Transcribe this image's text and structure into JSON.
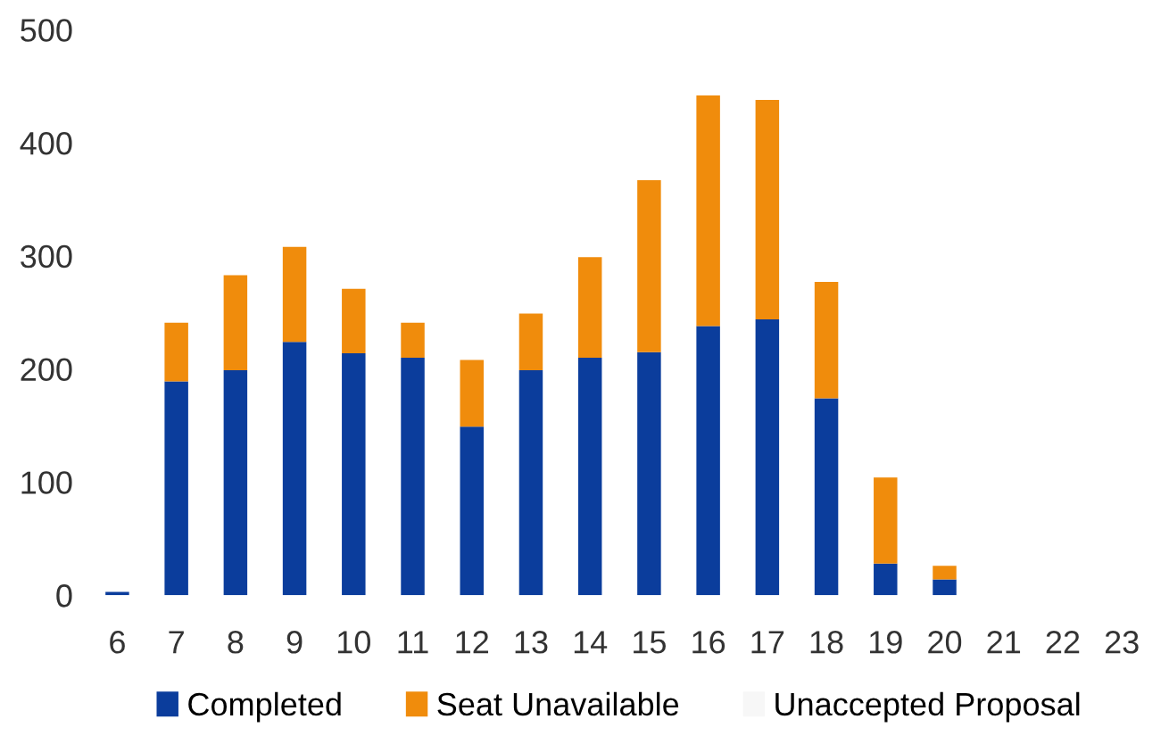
{
  "chart_data": {
    "type": "bar",
    "stacked": true,
    "categories": [
      "6",
      "7",
      "8",
      "9",
      "10",
      "11",
      "12",
      "13",
      "14",
      "15",
      "16",
      "17",
      "18",
      "19",
      "20",
      "21",
      "22",
      "23"
    ],
    "series": [
      {
        "name": "Completed",
        "color": "#0b3d9c",
        "values": [
          3,
          189,
          199,
          224,
          214,
          210,
          149,
          199,
          210,
          215,
          238,
          244,
          174,
          28,
          14,
          0,
          0,
          0
        ]
      },
      {
        "name": "Seat Unavailable",
        "color": "#f08c0c",
        "values": [
          0,
          52,
          84,
          84,
          57,
          31,
          59,
          50,
          89,
          152,
          204,
          194,
          103,
          76,
          12,
          0,
          0,
          0
        ]
      },
      {
        "name": "Unaccepted Proposal",
        "color": "#f7f7f7",
        "values": [
          0,
          0,
          0,
          0,
          0,
          0,
          0,
          0,
          0,
          0,
          0,
          0,
          0,
          0,
          0,
          0,
          0,
          0
        ]
      }
    ],
    "ylim": [
      0,
      500
    ],
    "yticks": [
      0,
      100,
      200,
      300,
      400,
      500
    ],
    "grid": false,
    "legend": "bottom"
  }
}
